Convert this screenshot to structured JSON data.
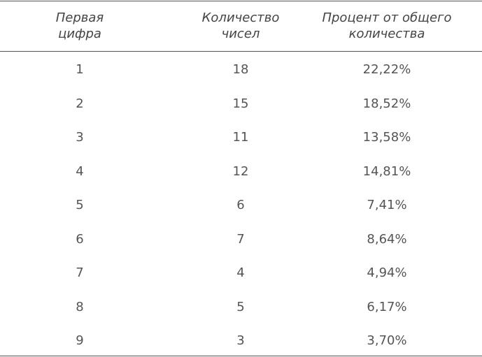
{
  "table": {
    "header": [
      [
        "Первая",
        "цифра"
      ],
      [
        "Количество",
        "чисел"
      ],
      [
        "Процент от общего",
        "количества"
      ]
    ],
    "rows": [
      [
        "1",
        "18",
        "22,22%"
      ],
      [
        "2",
        "15",
        "18,52%"
      ],
      [
        "3",
        "11",
        "13,58%"
      ],
      [
        "4",
        "12",
        "14,81%"
      ],
      [
        "5",
        "6",
        "7,41%"
      ],
      [
        "6",
        "7",
        "8,64%"
      ],
      [
        "7",
        "4",
        "4,94%"
      ],
      [
        "8",
        "5",
        "6,17%"
      ],
      [
        "9",
        "3",
        "3,70%"
      ]
    ]
  }
}
